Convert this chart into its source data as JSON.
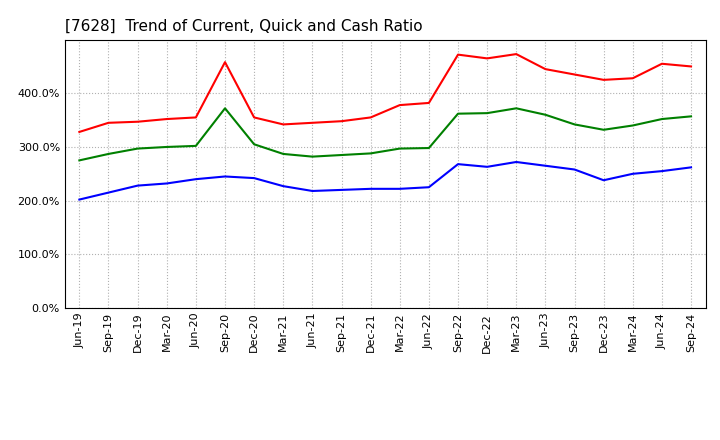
{
  "title": "[7628]  Trend of Current, Quick and Cash Ratio",
  "labels": [
    "Jun-19",
    "Sep-19",
    "Dec-19",
    "Mar-20",
    "Jun-20",
    "Sep-20",
    "Dec-20",
    "Mar-21",
    "Jun-21",
    "Sep-21",
    "Dec-21",
    "Mar-22",
    "Jun-22",
    "Sep-22",
    "Dec-22",
    "Mar-23",
    "Jun-23",
    "Sep-23",
    "Dec-23",
    "Mar-24",
    "Jun-24",
    "Sep-24"
  ],
  "current_ratio": [
    3.28,
    3.45,
    3.47,
    3.52,
    3.55,
    4.58,
    3.55,
    3.42,
    3.45,
    3.48,
    3.55,
    3.78,
    3.82,
    4.72,
    4.65,
    4.73,
    4.45,
    4.35,
    4.25,
    4.28,
    4.55,
    4.5
  ],
  "quick_ratio": [
    2.75,
    2.87,
    2.97,
    3.0,
    3.02,
    3.72,
    3.05,
    2.87,
    2.82,
    2.85,
    2.88,
    2.97,
    2.98,
    3.62,
    3.63,
    3.72,
    3.6,
    3.42,
    3.32,
    3.4,
    3.52,
    3.57
  ],
  "cash_ratio": [
    2.02,
    2.15,
    2.28,
    2.32,
    2.4,
    2.45,
    2.42,
    2.27,
    2.18,
    2.2,
    2.22,
    2.22,
    2.25,
    2.68,
    2.63,
    2.72,
    2.65,
    2.58,
    2.38,
    2.5,
    2.55,
    2.62
  ],
  "current_color": "#ff0000",
  "quick_color": "#008000",
  "cash_color": "#0000ff",
  "ylim": [
    0.0,
    5.0
  ],
  "yticks": [
    0.0,
    1.0,
    2.0,
    3.0,
    4.0
  ],
  "bg_color": "#ffffff",
  "grid_color": "#b0b0b0"
}
